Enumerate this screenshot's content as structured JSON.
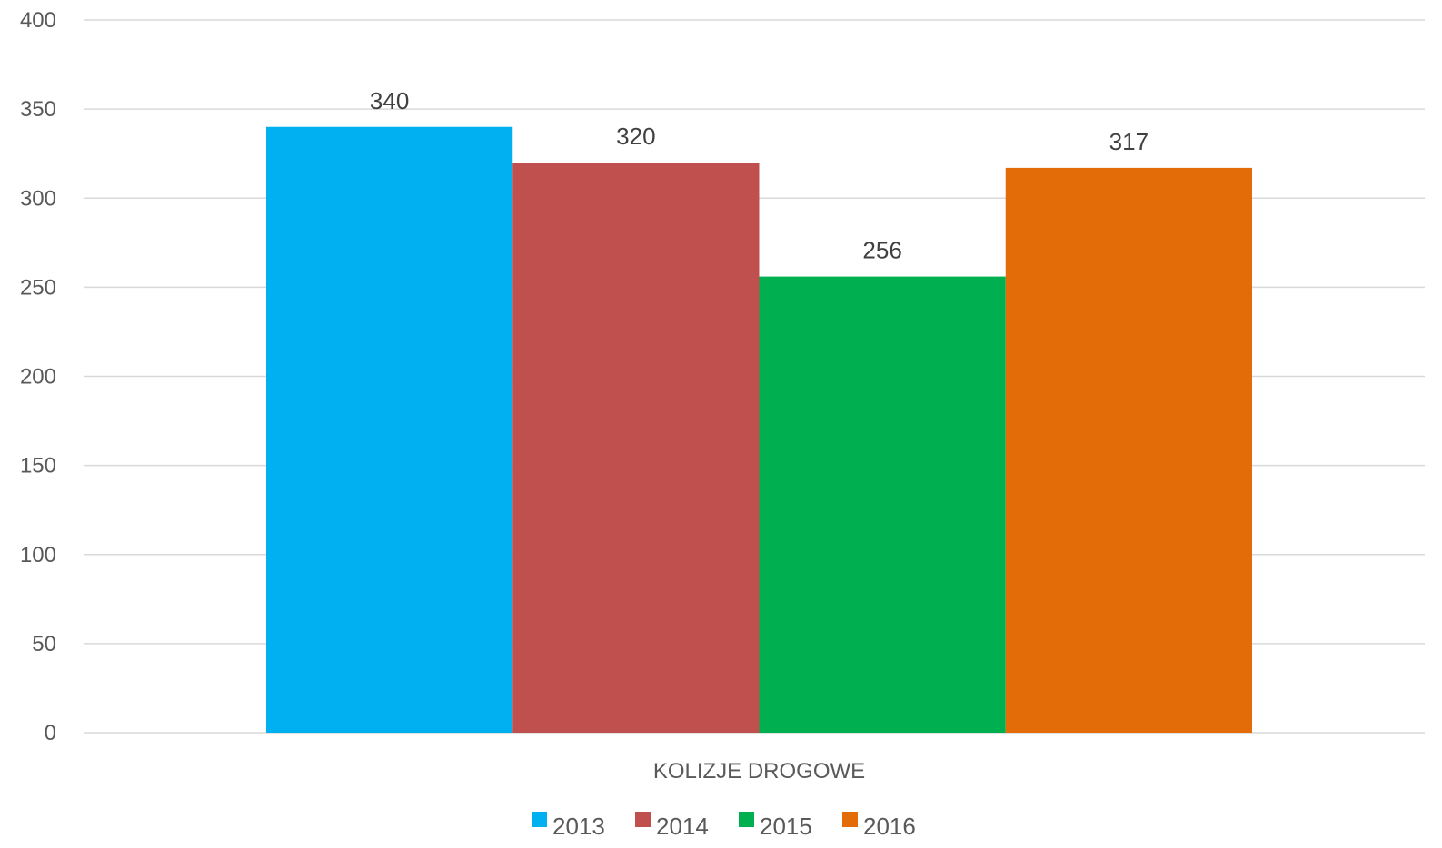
{
  "chart_data": {
    "type": "bar",
    "title": "",
    "xlabel": "",
    "ylabel": "",
    "categories": [
      "KOLIZJE DROGOWE"
    ],
    "series": [
      {
        "name": "2013",
        "values": [
          340
        ],
        "color": "#00B0F0"
      },
      {
        "name": "2014",
        "values": [
          320
        ],
        "color": "#C0504D"
      },
      {
        "name": "2015",
        "values": [
          256
        ],
        "color": "#00B050"
      },
      {
        "name": "2016",
        "values": [
          317
        ],
        "color": "#E36C09"
      }
    ],
    "ylim": [
      0,
      400
    ],
    "yticks": [
      0,
      50,
      100,
      150,
      200,
      250,
      300,
      350,
      400
    ],
    "grid": true,
    "data_labels": true,
    "legend": "bottom"
  }
}
